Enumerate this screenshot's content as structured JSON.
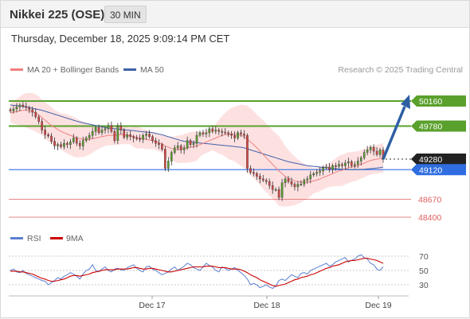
{
  "header": {
    "title": "Nikkei 225 (OSE)",
    "timeframe": "30 MIN",
    "datetime": "Thursday, December 18, 2025 9:09:14 PM CET"
  },
  "colors": {
    "ma20": "#f08080",
    "bollinger": "#fcd9d9",
    "ma50": "#3f62a8",
    "resistance": "#5aa02c",
    "support": "#4a7ee8",
    "support_low": "#e06060",
    "arrow": "#2e5fa3",
    "up_candle": "#5aa02c",
    "down_candle": "#d64545",
    "rsi": "#5b7fd1",
    "rsi_ma": "#cc0000"
  },
  "legend": {
    "ma20": "MA 20 + Bollinger Bands",
    "ma50": "MA 50",
    "copyright": "Research © 2025 Trading Central"
  },
  "chart_data": [
    {
      "type": "candlestick",
      "x_labels": [
        "Dec 17",
        "Dec 18",
        "Dec 19"
      ],
      "ylim": [
        48350,
        50350
      ],
      "levels": [
        {
          "value": 50160,
          "label": "50160",
          "kind": "resistance"
        },
        {
          "value": 49780,
          "label": "49780",
          "kind": "resistance"
        },
        {
          "value": 49280,
          "label": "49280",
          "kind": "current"
        },
        {
          "value": 49120,
          "label": "49120",
          "kind": "support"
        },
        {
          "value": 48670,
          "label": "48670",
          "kind": "support_low"
        },
        {
          "value": 48400,
          "label": "48400",
          "kind": "support_low"
        }
      ],
      "close": [
        50010,
        50040,
        50070,
        50100,
        50080,
        50060,
        50030,
        49990,
        49920,
        49850,
        49720,
        49650,
        49630,
        49550,
        49480,
        49500,
        49470,
        49520,
        49500,
        49540,
        49600,
        49520,
        49480,
        49560,
        49600,
        49640,
        49700,
        49760,
        49680,
        49720,
        49740,
        49790,
        49700,
        49560,
        49780,
        49720,
        49610,
        49650,
        49620,
        49600,
        49590,
        49580,
        49640,
        49660,
        49620,
        49560,
        49520,
        49500,
        49430,
        49140,
        49250,
        49380,
        49450,
        49480,
        49420,
        49450,
        49560,
        49500,
        49520,
        49640,
        49680,
        49660,
        49680,
        49740,
        49700,
        49720,
        49700,
        49690,
        49680,
        49660,
        49640,
        49600,
        49680,
        49660,
        49640,
        49140,
        49080,
        49060,
        49020,
        48980,
        48960,
        48940,
        48880,
        48820,
        48820,
        48700,
        48920,
        48980,
        48940,
        48900,
        48860,
        48900,
        48900,
        48960,
        48980,
        49040,
        49060,
        49080,
        49100,
        49150,
        49160,
        49120,
        49180,
        49170,
        49200,
        49180,
        49220,
        49240,
        49180,
        49200,
        49250,
        49300,
        49380,
        49420,
        49460,
        49400,
        49350,
        49420,
        49280
      ],
      "ma20": [
        49980,
        49990,
        50000,
        50010,
        50020,
        50020,
        50010,
        50000,
        49980,
        49950,
        49910,
        49870,
        49830,
        49790,
        49760,
        49730,
        49700,
        49680,
        49660,
        49640,
        49620,
        49600,
        49590,
        49580,
        49580,
        49580,
        49590,
        49600,
        49610,
        49620,
        49630,
        49640,
        49640,
        49640,
        49650,
        49650,
        49650,
        49640,
        49630,
        49620,
        49610,
        49600,
        49590,
        49580,
        49570,
        49560,
        49550,
        49530,
        49510,
        49480,
        49460,
        49440,
        49430,
        49430,
        49430,
        49440,
        49450,
        49460,
        49470,
        49480,
        49500,
        49520,
        49540,
        49560,
        49580,
        49600,
        49620,
        49640,
        49650,
        49650,
        49660,
        49660,
        49650,
        49640,
        49620,
        49580,
        49540,
        49500,
        49450,
        49400,
        49350,
        49300,
        49250,
        49200,
        49150,
        49100,
        49060,
        49020,
        48990,
        48970,
        48950,
        48940,
        48930,
        48930,
        48930,
        48940,
        48950,
        48960,
        48980,
        49000,
        49020,
        49040,
        49060,
        49080,
        49100,
        49110,
        49130,
        49150,
        49160,
        49170,
        49180,
        49200,
        49220,
        49240,
        49260,
        49270,
        49280,
        49290,
        49300
      ],
      "ma50": [
        50100,
        50095,
        50090,
        50085,
        50080,
        50070,
        50060,
        50050,
        50040,
        50030,
        50020,
        50005,
        49990,
        49975,
        49960,
        49945,
        49930,
        49915,
        49900,
        49885,
        49870,
        49855,
        49840,
        49830,
        49820,
        49810,
        49800,
        49790,
        49780,
        49770,
        49760,
        49750,
        49745,
        49740,
        49735,
        49730,
        49725,
        49720,
        49715,
        49710,
        49705,
        49700,
        49695,
        49690,
        49685,
        49680,
        49670,
        49660,
        49650,
        49635,
        49620,
        49605,
        49590,
        49575,
        49560,
        49550,
        49545,
        49540,
        49535,
        49530,
        49525,
        49520,
        49515,
        49510,
        49505,
        49500,
        49495,
        49490,
        49485,
        49480,
        49475,
        49470,
        49465,
        49460,
        49450,
        49435,
        49420,
        49405,
        49390,
        49375,
        49360,
        49345,
        49330,
        49315,
        49300,
        49285,
        49270,
        49255,
        49240,
        49230,
        49220,
        49210,
        49200,
        49190,
        49180,
        49175,
        49170,
        49165,
        49160,
        49155,
        49150,
        49145,
        49140,
        49135,
        49130,
        49128,
        49126,
        49124,
        49122,
        49122,
        49122,
        49124,
        49126,
        49130,
        49135,
        49140,
        49145,
        49150,
        49160
      ]
    },
    {
      "type": "line",
      "legend": [
        "RSI",
        "9MA"
      ],
      "ticks": [
        70,
        50,
        30
      ],
      "ylim": [
        20,
        80
      ],
      "rsi": [
        50,
        52,
        48,
        47,
        50,
        46,
        44,
        42,
        40,
        38,
        36,
        35,
        30,
        33,
        36,
        40,
        38,
        42,
        44,
        47,
        45,
        42,
        38,
        45,
        50,
        52,
        58,
        50,
        48,
        52,
        55,
        50,
        48,
        52,
        53,
        51,
        50,
        54,
        56,
        58,
        53,
        50,
        48,
        55,
        56,
        52,
        50,
        47,
        44,
        46,
        48,
        52,
        55,
        50,
        53,
        56,
        60,
        58,
        54,
        52,
        50,
        55,
        60,
        57,
        55,
        50,
        48,
        55,
        53,
        50,
        52,
        54,
        50,
        47,
        43,
        38,
        30,
        32,
        30,
        26,
        28,
        30,
        27,
        25,
        28,
        36,
        38,
        36,
        40,
        44,
        42,
        40,
        46,
        47,
        45,
        50,
        52,
        54,
        56,
        58,
        60,
        56,
        58,
        62,
        64,
        66,
        68,
        62,
        64,
        66,
        70,
        72,
        68,
        66,
        60,
        58,
        52,
        50,
        55
      ],
      "rsi_ma": [
        49,
        49,
        49,
        48,
        48,
        47,
        46,
        45,
        43,
        41,
        39,
        38,
        36,
        35,
        35,
        36,
        37,
        38,
        40,
        42,
        43,
        43,
        42,
        43,
        44,
        45,
        47,
        48,
        49,
        50,
        51,
        51,
        51,
        51,
        52,
        52,
        52,
        52,
        53,
        54,
        54,
        53,
        52,
        52,
        53,
        53,
        52,
        51,
        50,
        49,
        48,
        48,
        49,
        50,
        51,
        52,
        53,
        54,
        55,
        55,
        55,
        55,
        56,
        56,
        56,
        55,
        54,
        54,
        54,
        53,
        52,
        52,
        52,
        51,
        49,
        47,
        44,
        42,
        40,
        37,
        35,
        33,
        31,
        29,
        28,
        29,
        30,
        31,
        33,
        35,
        37,
        38,
        40,
        41,
        42,
        44,
        45,
        47,
        49,
        51,
        53,
        54,
        56,
        57,
        58,
        60,
        62,
        63,
        64,
        64,
        65,
        66,
        67,
        67,
        66,
        65,
        64,
        62,
        60
      ]
    }
  ]
}
